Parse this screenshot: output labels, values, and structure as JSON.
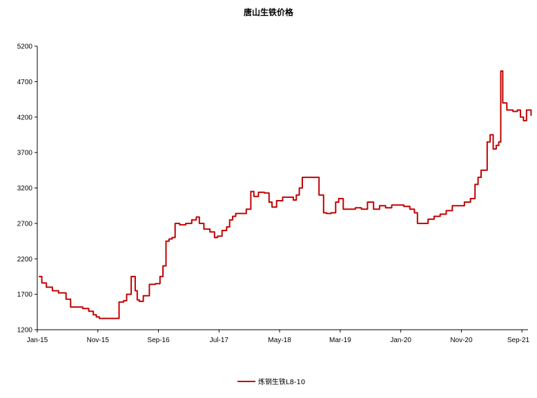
{
  "chart_data": {
    "type": "line",
    "title": "唐山生铁价格",
    "ylim": [
      1200,
      5200
    ],
    "yticks": [
      1200,
      1700,
      2200,
      2700,
      3200,
      3700,
      4200,
      4700,
      5200
    ],
    "xticks": [
      "Jan-15",
      "Nov-15",
      "Sep-16",
      "Jul-17",
      "May-18",
      "Mar-19",
      "Jan-20",
      "Nov-20",
      "Sep-21"
    ],
    "xlim": [
      "2015-01",
      "2021-10"
    ],
    "legend": "bottom-center",
    "grid": false,
    "series": [
      {
        "name": "炼钢生铁L8-10",
        "color": "#c00000",
        "x": [
          "2015-01",
          "2015-01",
          "2015-02",
          "2015-03",
          "2015-04",
          "2015-05",
          "2015-05",
          "2015-06",
          "2015-07",
          "2015-07",
          "2015-08",
          "2015-09",
          "2015-10",
          "2015-10",
          "2015-11",
          "2015-11",
          "2015-12",
          "2016-01",
          "2016-02",
          "2016-03",
          "2016-03",
          "2016-04",
          "2016-05",
          "2016-05",
          "2016-05",
          "2016-06",
          "2016-07",
          "2016-08",
          "2016-09",
          "2016-09",
          "2016-10",
          "2016-10",
          "2016-11",
          "2016-11",
          "2016-12",
          "2017-01",
          "2017-02",
          "2017-03",
          "2017-03",
          "2017-04",
          "2017-05",
          "2017-06",
          "2017-06",
          "2017-07",
          "2017-08",
          "2017-08",
          "2017-09",
          "2017-09",
          "2017-10",
          "2017-11",
          "2017-12",
          "2017-12",
          "2018-01",
          "2018-02",
          "2018-03",
          "2018-03",
          "2018-04",
          "2018-05",
          "2018-06",
          "2018-07",
          "2018-07",
          "2018-08",
          "2018-08",
          "2018-09",
          "2018-10",
          "2018-11",
          "2018-12",
          "2018-12",
          "2019-01",
          "2019-02",
          "2019-02",
          "2019-03",
          "2019-04",
          "2019-05",
          "2019-06",
          "2019-07",
          "2019-08",
          "2019-09",
          "2019-10",
          "2019-11",
          "2019-12",
          "2020-01",
          "2020-02",
          "2020-03",
          "2020-03",
          "2020-04",
          "2020-05",
          "2020-06",
          "2020-07",
          "2020-08",
          "2020-09",
          "2020-10",
          "2020-11",
          "2020-12",
          "2021-01",
          "2021-01",
          "2021-02",
          "2021-02",
          "2021-03",
          "2021-03",
          "2021-04",
          "2021-04",
          "2021-05",
          "2021-05",
          "2021-05",
          "2021-06",
          "2021-07",
          "2021-08",
          "2021-08",
          "2021-09",
          "2021-09",
          "2021-10"
        ],
        "y": [
          1950,
          1860,
          1800,
          1750,
          1720,
          1720,
          1630,
          1520,
          1520,
          1520,
          1500,
          1460,
          1410,
          1380,
          1360,
          1360,
          1360,
          1360,
          1590,
          1610,
          1700,
          1950,
          1750,
          1620,
          1600,
          1680,
          1840,
          1850,
          1950,
          2100,
          2450,
          2480,
          2500,
          2700,
          2680,
          2700,
          2750,
          2790,
          2700,
          2620,
          2580,
          2500,
          2520,
          2600,
          2650,
          2750,
          2800,
          2840,
          2840,
          2900,
          3150,
          3080,
          3140,
          3130,
          3000,
          2930,
          3020,
          3070,
          3070,
          3030,
          3100,
          3200,
          3350,
          3350,
          3350,
          3100,
          2850,
          2840,
          2850,
          3000,
          3050,
          2900,
          2900,
          2920,
          2900,
          3000,
          2900,
          2950,
          2920,
          2960,
          2960,
          2940,
          2900,
          2850,
          2700,
          2700,
          2760,
          2800,
          2830,
          2880,
          2950,
          2950,
          3000,
          3050,
          3250,
          3350,
          3450,
          3450,
          3850,
          3950,
          3750,
          3800,
          3850,
          4850,
          4400,
          4300,
          4280,
          4300,
          4200,
          4150,
          4300,
          4220
        ]
      }
    ]
  }
}
